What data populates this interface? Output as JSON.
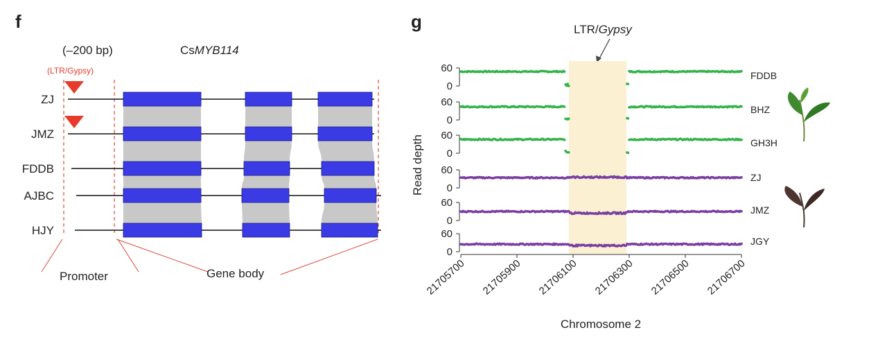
{
  "panel_f": {
    "letter": "f",
    "promoter_window": "(–200 bp)",
    "gene_prefix": "Cs",
    "gene_italic": "MYB114",
    "insertion_label": "(LTR/Gypsy)",
    "promoter_label": "Promoter",
    "gene_body_label": "Gene body",
    "accessions": [
      {
        "name": "ZJ",
        "insertion": true
      },
      {
        "name": "JMZ",
        "insertion": true
      },
      {
        "name": "FDDB",
        "insertion": false
      },
      {
        "name": "AJBC",
        "insertion": false
      },
      {
        "name": "HJY",
        "insertion": false
      }
    ],
    "colors": {
      "exon": "#3b3be6",
      "synteny": "#c8c8c8",
      "insertion": "#e83a2c",
      "guide": "#e0453a"
    }
  },
  "panel_g": {
    "letter": "g",
    "annotation_prefix": "LTR/",
    "annotation_italic": "Gypsy",
    "chart_data": {
      "type": "scatter",
      "xlabel": "Chromosome 2",
      "ylabel": "Read depth",
      "xlim": [
        21705700,
        21706700
      ],
      "xticks": [
        "21705700",
        "21705900",
        "21706100",
        "21706300",
        "21706500",
        "21706700"
      ],
      "yticks": [
        "60",
        "0"
      ],
      "highlight_region": [
        21706085,
        21706290
      ],
      "highlight_color": "#fbf0d2",
      "series": [
        {
          "name": "FDDB",
          "color": "#35b34a",
          "base": 48,
          "gap": [
            21706085,
            21706290
          ]
        },
        {
          "name": "BHZ",
          "color": "#35b34a",
          "base": 44,
          "gap": [
            21706085,
            21706290
          ]
        },
        {
          "name": "GH3H",
          "color": "#35b34a",
          "base": 46,
          "gap": [
            21706085,
            21706290
          ]
        },
        {
          "name": "ZJ",
          "color": "#7a3fa3",
          "base": 34
        },
        {
          "name": "JMZ",
          "color": "#7a3fa3",
          "base": 30
        },
        {
          "name": "JGY",
          "color": "#7a3fa3",
          "base": 25
        }
      ]
    }
  }
}
